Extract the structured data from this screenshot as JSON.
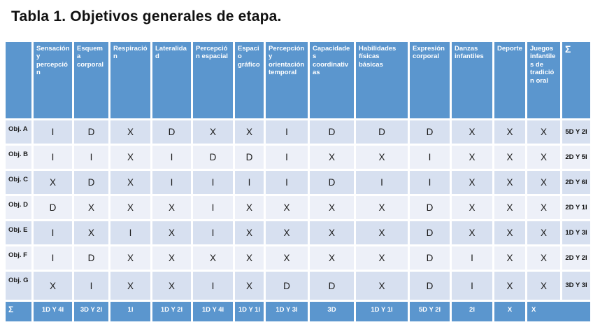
{
  "title": "Tabla 1. Objetivos generales de etapa.",
  "colors": {
    "header_blue": "#5b96ce",
    "band_dark": "#d7e0f0",
    "band_light": "#edf0f8",
    "header_text": "#ffffff",
    "cell_text": "#1b1b1b"
  },
  "table": {
    "corner_label": "",
    "column_headers": [
      "Sensación y percepción",
      "Esquema corporal",
      "Respiración",
      "Lateralidad",
      "Percepción espacial",
      "Espacio gráfico",
      "Percepción y orientación temporal",
      "Capacidades coordinativas",
      "Habilidades físicas básicas",
      "Expresión corporal",
      "Danzas infantiles",
      "Deporte",
      "Juegos infantiles de tradición oral",
      "Σ"
    ],
    "rows": [
      {
        "label": "Obj. A",
        "cells": [
          "I",
          "D",
          "X",
          "D",
          "X",
          "X",
          "I",
          "D",
          "D",
          "D",
          "X",
          "X",
          "X"
        ],
        "sum": "5D Y 2I"
      },
      {
        "label": "Obj. B",
        "cells": [
          "I",
          "I",
          "X",
          "I",
          "D",
          "D",
          "I",
          "X",
          "X",
          "I",
          "X",
          "X",
          "X"
        ],
        "sum": "2D Y 5I"
      },
      {
        "label": "Obj. C",
        "cells": [
          "X",
          "D",
          "X",
          "I",
          "I",
          "I",
          "I",
          "D",
          "I",
          "I",
          "X",
          "X",
          "X"
        ],
        "sum": "2D Y 6I"
      },
      {
        "label": "Obj. D",
        "cells": [
          "D",
          "X",
          "X",
          "X",
          "I",
          "X",
          "X",
          "X",
          "X",
          "D",
          "X",
          "X",
          "X"
        ],
        "sum": "2D Y 1I"
      },
      {
        "label": "Obj. E",
        "cells": [
          "I",
          "X",
          "I",
          "X",
          "I",
          "X",
          "X",
          "X",
          "X",
          "D",
          "X",
          "X",
          "X"
        ],
        "sum": "1D Y 3I"
      },
      {
        "label": "Obj. F",
        "cells": [
          "I",
          "D",
          "X",
          "X",
          "X",
          "X",
          "X",
          "X",
          "X",
          "D",
          "I",
          "X",
          "X"
        ],
        "sum": "2D Y 2I"
      },
      {
        "label": "Obj. G",
        "cells": [
          "X",
          "I",
          "X",
          "X",
          "I",
          "X",
          "D",
          "D",
          "X",
          "D",
          "I",
          "X",
          "X"
        ],
        "sum": "3D Y 3I"
      }
    ],
    "footer": {
      "label": "Σ",
      "cells": [
        "1D Y 4I",
        "3D Y 2I",
        "1I",
        "1D Y 2I",
        "1D Y 4I",
        "1D Y 1I",
        "1D Y 3I",
        "3D",
        "1D Y 1I",
        "5D Y 2I",
        "2I",
        "X",
        "X"
      ]
    }
  }
}
